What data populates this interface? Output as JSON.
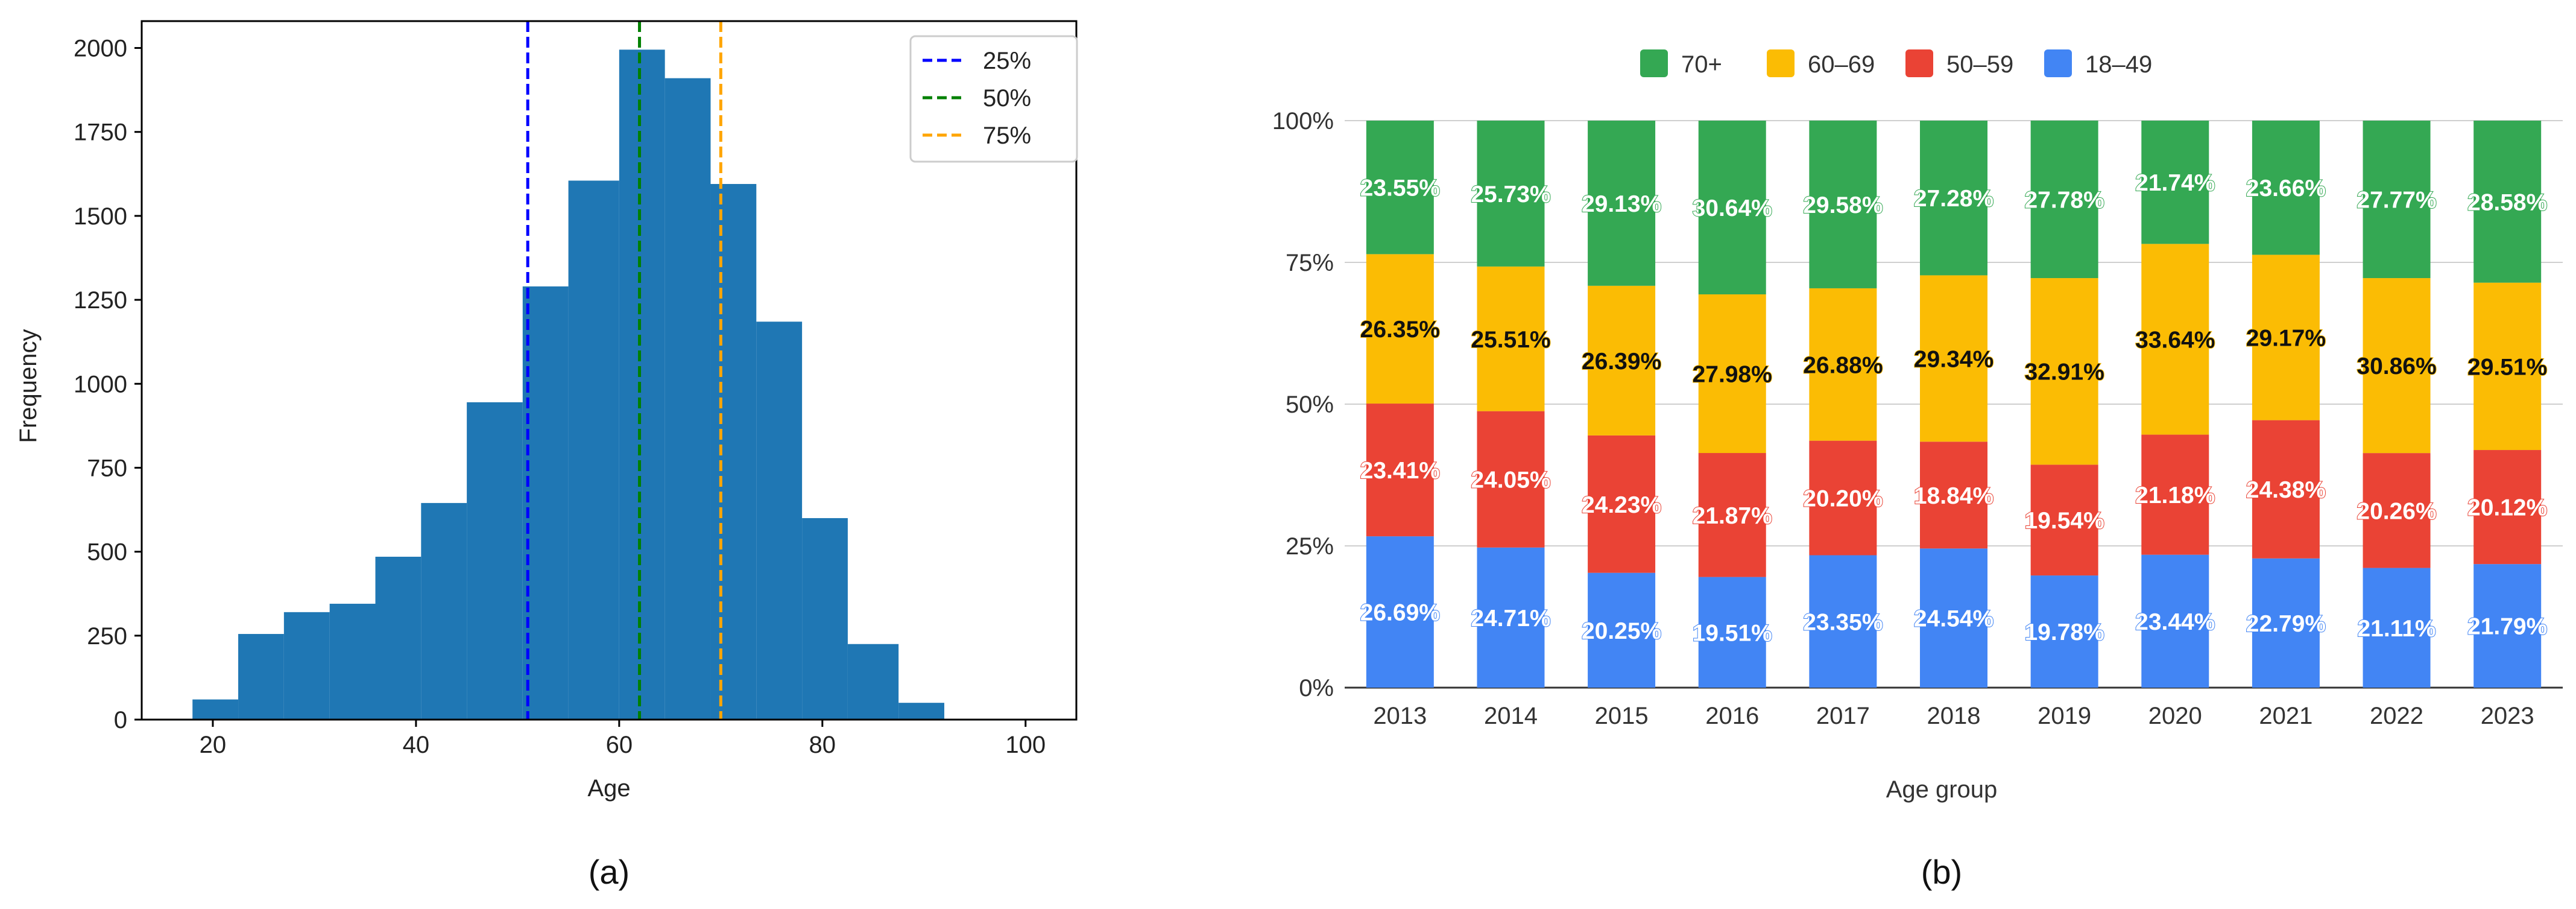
{
  "chart_data": [
    {
      "type": "bar",
      "subtype": "histogram",
      "panel_label": "(a)",
      "xlabel": "Age",
      "ylabel": "Frequency",
      "xlim": [
        13,
        105
      ],
      "ylim": [
        0,
        2080
      ],
      "xticks": [
        20,
        40,
        60,
        80,
        100
      ],
      "yticks": [
        0,
        250,
        500,
        750,
        1000,
        1250,
        1500,
        1750,
        2000
      ],
      "bin_edges": [
        18,
        22.5,
        27,
        31.5,
        36,
        40.5,
        45,
        50.5,
        55,
        60,
        64.5,
        69,
        73.5,
        78,
        82.5,
        87.5,
        92,
        95
      ],
      "values": [
        60,
        255,
        320,
        345,
        485,
        645,
        945,
        1290,
        1605,
        1995,
        1910,
        1595,
        1185,
        600,
        225,
        50,
        0
      ],
      "bar_color": "#1f77b4",
      "vlines": [
        {
          "label": "25%",
          "x": 51,
          "color": "#0000ff"
        },
        {
          "label": "50%",
          "x": 62,
          "color": "#008000"
        },
        {
          "label": "75%",
          "x": 70,
          "color": "#ffa500"
        }
      ],
      "legend": "top-right"
    },
    {
      "type": "bar",
      "subtype": "stacked-100",
      "panel_label": "(b)",
      "xlabel": "Age group",
      "ylabel": "",
      "categories": [
        "2013",
        "2014",
        "2015",
        "2016",
        "2017",
        "2018",
        "2019",
        "2020",
        "2021",
        "2022",
        "2023"
      ],
      "ytick_labels": [
        "0%",
        "25%",
        "50%",
        "75%",
        "100%"
      ],
      "legend": "top",
      "series": [
        {
          "name": "18–49",
          "color": "#4285f4",
          "values": [
            26.69,
            24.71,
            20.25,
            19.51,
            23.35,
            24.54,
            19.78,
            23.44,
            22.79,
            21.11,
            21.79
          ],
          "labels": [
            "26.69%",
            "24.71%",
            "20.25%",
            "19.51%",
            "23.35%",
            "24.54%",
            "19.78%",
            "23.44%",
            "22.79%",
            "21.11%",
            "21.79%"
          ]
        },
        {
          "name": "50–59",
          "color": "#ea4335",
          "values": [
            23.41,
            24.05,
            24.23,
            21.87,
            20.2,
            18.84,
            19.54,
            21.18,
            24.38,
            20.26,
            20.12
          ],
          "labels": [
            "23.41%",
            "24.05%",
            "24.23%",
            "21.87%",
            "20.20%",
            "18.84%",
            "19.54%",
            "21.18%",
            "24.38%",
            "20.26%",
            "20.12%"
          ]
        },
        {
          "name": "60–69",
          "color": "#fbbc04",
          "values": [
            26.35,
            25.51,
            26.39,
            27.98,
            26.88,
            29.34,
            32.91,
            33.64,
            29.17,
            30.86,
            29.51
          ],
          "labels": [
            "26.35%",
            "25.51%",
            "26.39%",
            "27.98%",
            "26.88%",
            "29.34%",
            "32.91%",
            "33.64%",
            "29.17%",
            "30.86%",
            "29.51%"
          ]
        },
        {
          "name": "70+",
          "color": "#34a853",
          "values": [
            23.55,
            25.73,
            29.13,
            30.64,
            29.58,
            27.28,
            27.78,
            21.74,
            23.66,
            27.77,
            28.58
          ],
          "labels": [
            "23.55%",
            "25.73%",
            "29.13%",
            "30.64%",
            "29.58%",
            "27.28%",
            "27.78%",
            "21.74%",
            "23.66%",
            "27.77%",
            "28.58%"
          ]
        }
      ],
      "legend_order": [
        "70+",
        "60–69",
        "50–59",
        "18–49"
      ]
    }
  ]
}
